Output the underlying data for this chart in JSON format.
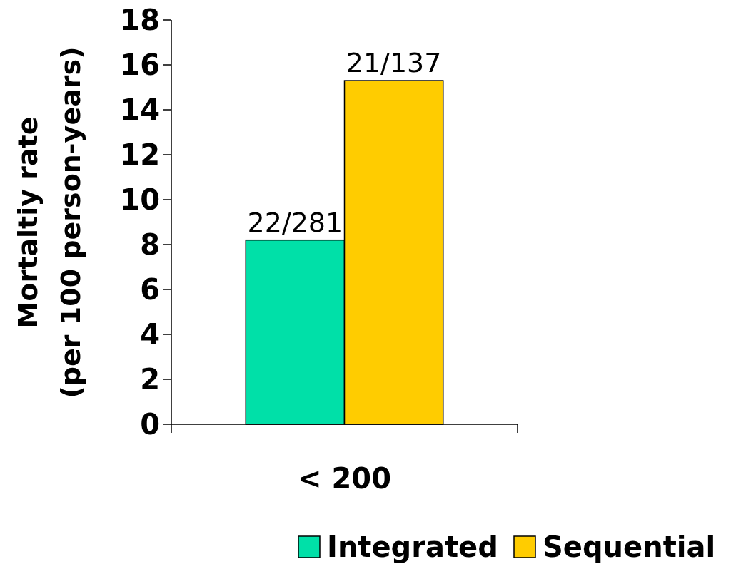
{
  "chart_data": {
    "type": "bar",
    "categories": [
      "< 200"
    ],
    "ylabel": "Mortaltiy rate\n(per 100 person-years)",
    "ylim": [
      0,
      18
    ],
    "yticks": [
      0,
      2,
      4,
      6,
      8,
      10,
      12,
      14,
      16,
      18
    ],
    "grid": false,
    "legend": "bottom right",
    "series": [
      {
        "name": "Integrated",
        "color": "#00e0a8",
        "values": [
          8.2
        ],
        "value_labels": [
          "22/281"
        ]
      },
      {
        "name": "Sequential",
        "color": "#ffcc00",
        "values": [
          15.3
        ],
        "value_labels": [
          "21/137"
        ]
      }
    ]
  }
}
